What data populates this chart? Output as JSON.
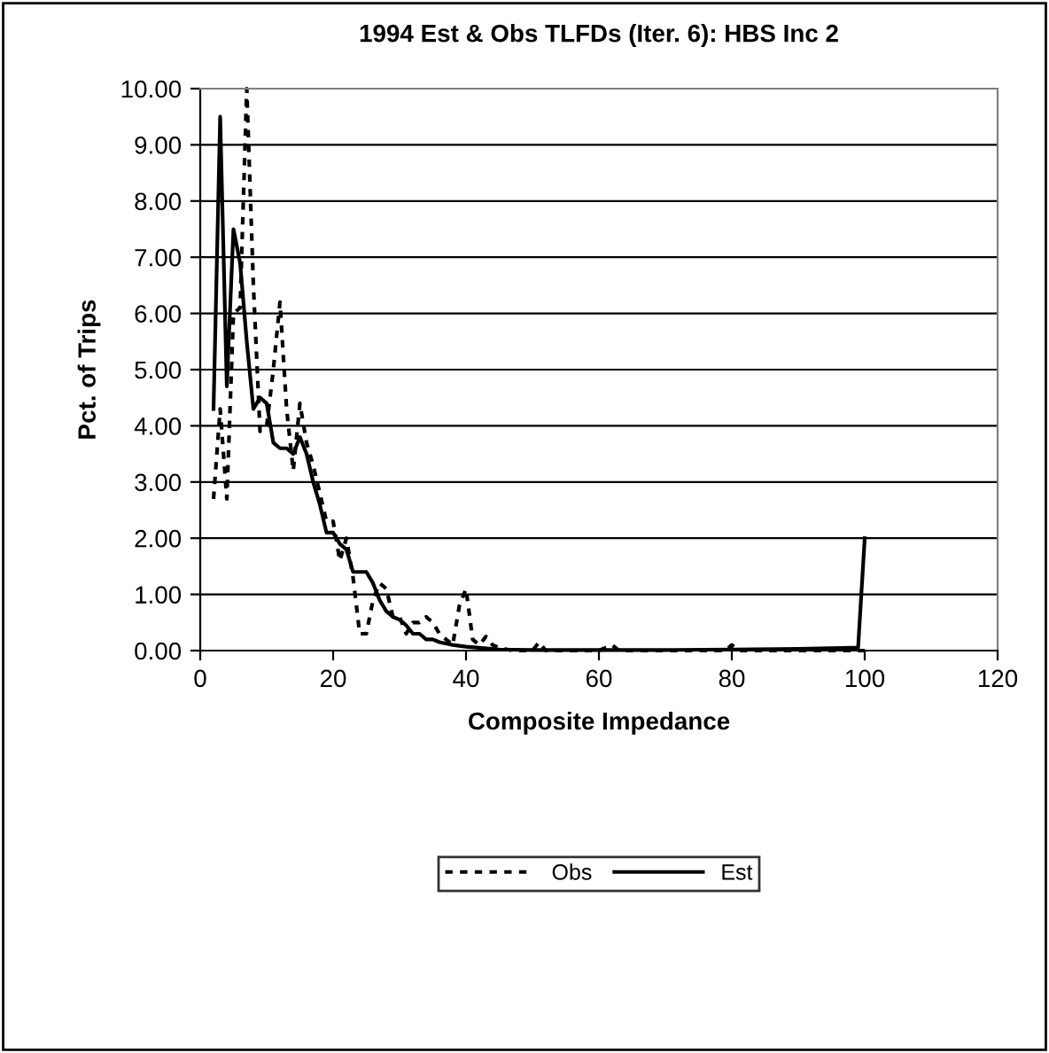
{
  "chart_data": {
    "type": "line",
    "title": "1994 Est & Obs TLFDs (Iter. 6): HBS Inc 2",
    "xlabel": "Composite Impedance",
    "ylabel": "Pct. of Trips",
    "xlim": [
      0,
      120
    ],
    "xticks": [
      0,
      20,
      40,
      60,
      80,
      100,
      120
    ],
    "ylim": [
      0,
      10
    ],
    "yticks": [
      {
        "value": 0,
        "label": "0.00"
      },
      {
        "value": 1,
        "label": "1.00"
      },
      {
        "value": 2,
        "label": "2.00"
      },
      {
        "value": 3,
        "label": "3.00"
      },
      {
        "value": 4,
        "label": "4.00"
      },
      {
        "value": 5,
        "label": "5.00"
      },
      {
        "value": 6,
        "label": "6.00"
      },
      {
        "value": 7,
        "label": "7.00"
      },
      {
        "value": 8,
        "label": "8.00"
      },
      {
        "value": 9,
        "label": "9.00"
      },
      {
        "value": 10,
        "label": "10.00"
      }
    ],
    "grid": "y",
    "legend": "bottom",
    "marker": "none",
    "series": [
      {
        "name": "Obs",
        "color": "#000000",
        "line_style": "dotted",
        "x": [
          2,
          3,
          4,
          5,
          6,
          7,
          8,
          9,
          10,
          11,
          12,
          13,
          14,
          15,
          16,
          17,
          18,
          19,
          20,
          21,
          22,
          23,
          24,
          25,
          26,
          27,
          28,
          29,
          30,
          31,
          32,
          33,
          34,
          35,
          36,
          37,
          38,
          39,
          40,
          41,
          42,
          43,
          44,
          45,
          47,
          50,
          51,
          52,
          60,
          62,
          63,
          79,
          80,
          81,
          100
        ],
        "values": [
          2.7,
          4.3,
          2.7,
          6.0,
          6.1,
          10.0,
          6.5,
          3.9,
          4.0,
          5.0,
          6.2,
          4.3,
          3.2,
          4.4,
          3.7,
          3.3,
          2.8,
          2.3,
          2.3,
          1.6,
          2.0,
          1.3,
          0.3,
          0.3,
          0.9,
          1.2,
          1.1,
          0.6,
          0.6,
          0.3,
          0.5,
          0.5,
          0.6,
          0.5,
          0.3,
          0.2,
          0.1,
          0.8,
          1.1,
          0.2,
          0.1,
          0.25,
          0.1,
          0.05,
          0.0,
          0.0,
          0.15,
          0.0,
          0.0,
          0.1,
          0.0,
          0.0,
          0.1,
          0.0,
          0.0
        ]
      },
      {
        "name": "Est",
        "color": "#000000",
        "line_style": "solid",
        "x": [
          2,
          3,
          4,
          5,
          6,
          7,
          8,
          9,
          10,
          11,
          12,
          13,
          14,
          15,
          16,
          17,
          18,
          19,
          20,
          21,
          22,
          23,
          24,
          25,
          26,
          27,
          28,
          29,
          30,
          31,
          32,
          33,
          34,
          35,
          36,
          38,
          40,
          42,
          45,
          50,
          60,
          70,
          80,
          90,
          98,
          99,
          100
        ],
        "values": [
          4.3,
          9.5,
          4.7,
          7.5,
          6.9,
          5.5,
          4.3,
          4.5,
          4.4,
          3.7,
          3.6,
          3.6,
          3.5,
          3.8,
          3.5,
          3.0,
          2.6,
          2.1,
          2.1,
          1.9,
          1.8,
          1.4,
          1.4,
          1.4,
          1.2,
          0.9,
          0.7,
          0.6,
          0.55,
          0.45,
          0.3,
          0.3,
          0.2,
          0.2,
          0.15,
          0.1,
          0.07,
          0.05,
          0.02,
          0.01,
          0.01,
          0.01,
          0.02,
          0.03,
          0.05,
          0.05,
          2.0
        ]
      }
    ]
  }
}
